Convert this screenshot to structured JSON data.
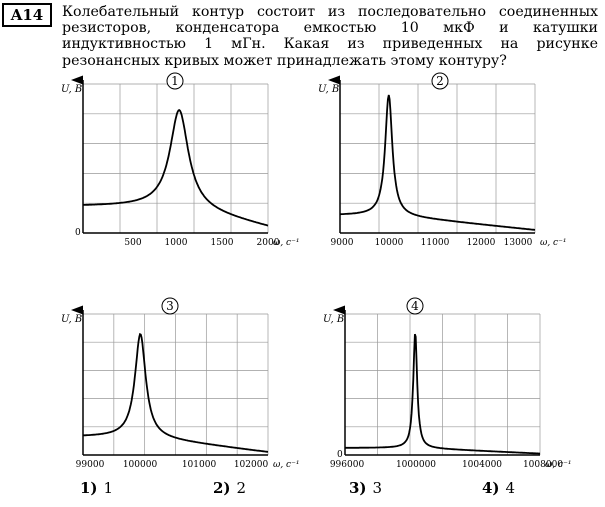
{
  "question": {
    "number": "A14",
    "text": "Колебательный контур состоит из последовательно соединенных резисторов, конденсатора емкостью 10 мкФ и катушки индуктивностью 1 мГн. Какая из приведенных на рисунке резонансных кривых может принадлежать этому контуру?"
  },
  "chart_data": [
    {
      "type": "line",
      "badge": "1",
      "ylabel": "U, В",
      "xlabel": "ω, с⁻¹",
      "origin_label": "0",
      "xlim": [
        0,
        2000
      ],
      "xticks": [
        500,
        1000,
        1500,
        2000
      ],
      "ylim": [
        0,
        1
      ],
      "peak_x": 1000,
      "curve_shape": "broad"
    },
    {
      "type": "line",
      "badge": "2",
      "ylabel": "U, В",
      "xlabel": "ω, с⁻¹",
      "origin_label": "",
      "xlim": [
        9000,
        13000
      ],
      "xticks": [
        9000,
        10000,
        11000,
        12000,
        13000
      ],
      "ylim": [
        0,
        1
      ],
      "peak_x": 10000,
      "curve_shape": "narrow"
    },
    {
      "type": "line",
      "badge": "3",
      "ylabel": "U, В",
      "xlabel": "ω, с⁻¹",
      "origin_label": "",
      "xlim": [
        99000,
        102000
      ],
      "xticks": [
        99000,
        100000,
        101000,
        102000
      ],
      "ylim": [
        0,
        1
      ],
      "peak_x": 100000,
      "curve_shape": "medium"
    },
    {
      "type": "line",
      "badge": "4",
      "ylabel": "U, В",
      "xlabel": "ω, с⁻¹",
      "origin_label": "0",
      "xlim": [
        996000,
        1008000
      ],
      "xticks_labels": [
        "996000",
        "1000000",
        "1004000",
        "1008000"
      ],
      "ylim": [
        0,
        1
      ],
      "peak_x": 1000000,
      "curve_shape": "very-narrow"
    }
  ],
  "answers": [
    {
      "num": "1)",
      "text": "1"
    },
    {
      "num": "2)",
      "text": "2"
    },
    {
      "num": "3)",
      "text": "3"
    },
    {
      "num": "4)",
      "text": "4"
    }
  ]
}
